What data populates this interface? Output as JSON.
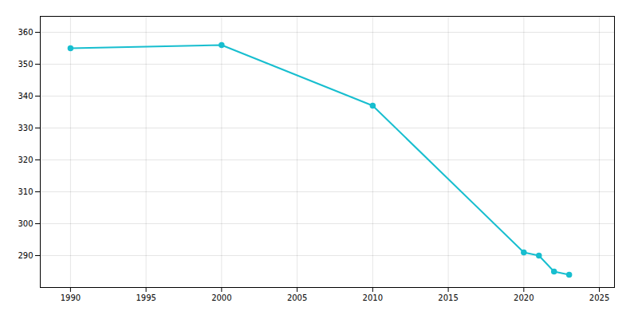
{
  "chart_data": {
    "type": "line",
    "x": [
      1990,
      2000,
      2010,
      2020,
      2021,
      2022,
      2023
    ],
    "values": [
      355,
      356,
      337,
      291,
      290,
      285,
      284
    ],
    "color": "#17becf",
    "marker": "circle",
    "xlim": [
      1988,
      2026
    ],
    "ylim": [
      280,
      365
    ],
    "xticks": [
      1990,
      1995,
      2000,
      2005,
      2010,
      2015,
      2020,
      2025
    ],
    "yticks": [
      290,
      300,
      310,
      320,
      330,
      340,
      350,
      360
    ],
    "grid": true
  }
}
